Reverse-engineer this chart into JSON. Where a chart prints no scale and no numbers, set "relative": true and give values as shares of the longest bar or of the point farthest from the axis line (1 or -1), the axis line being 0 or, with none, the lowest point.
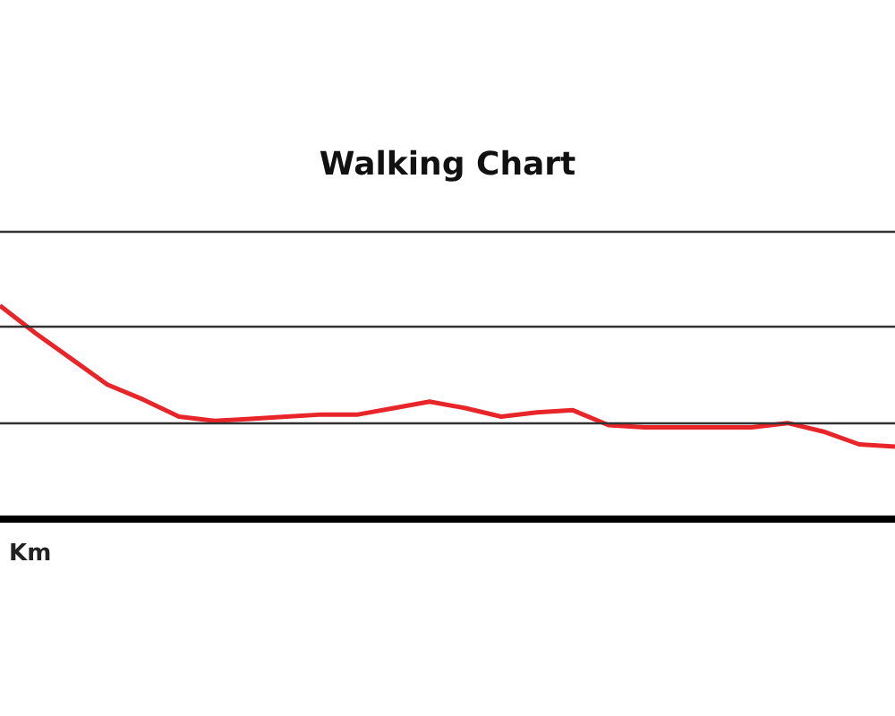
{
  "chart_data": {
    "type": "line",
    "title": "Walking Chart",
    "xlabel": "Km",
    "relative": true,
    "ref_lines": [
      {
        "axis": "y",
        "value": 0.45,
        "color": "#333333"
      },
      {
        "axis": "y",
        "value": 0.9,
        "color": "#333333"
      },
      {
        "axis": "y",
        "value": 1.35,
        "color": "#333333"
      }
    ],
    "marker": "none",
    "line_style": "solid",
    "categories": [
      null,
      null,
      null,
      null,
      null,
      null,
      null,
      null,
      null,
      null,
      null,
      null,
      null,
      null,
      null,
      null,
      null,
      null,
      null,
      null,
      null,
      null,
      null,
      null,
      null,
      null
    ],
    "series": [
      {
        "color": "#e8262a",
        "values": [
          1.0,
          0.87,
          0.75,
          0.63,
          0.56,
          0.48,
          0.46,
          0.47,
          0.48,
          0.49,
          0.49,
          0.52,
          0.55,
          0.52,
          0.48,
          0.5,
          0.51,
          0.44,
          0.43,
          0.43,
          0.43,
          0.43,
          0.45,
          0.41,
          0.35,
          0.34
        ]
      }
    ]
  }
}
